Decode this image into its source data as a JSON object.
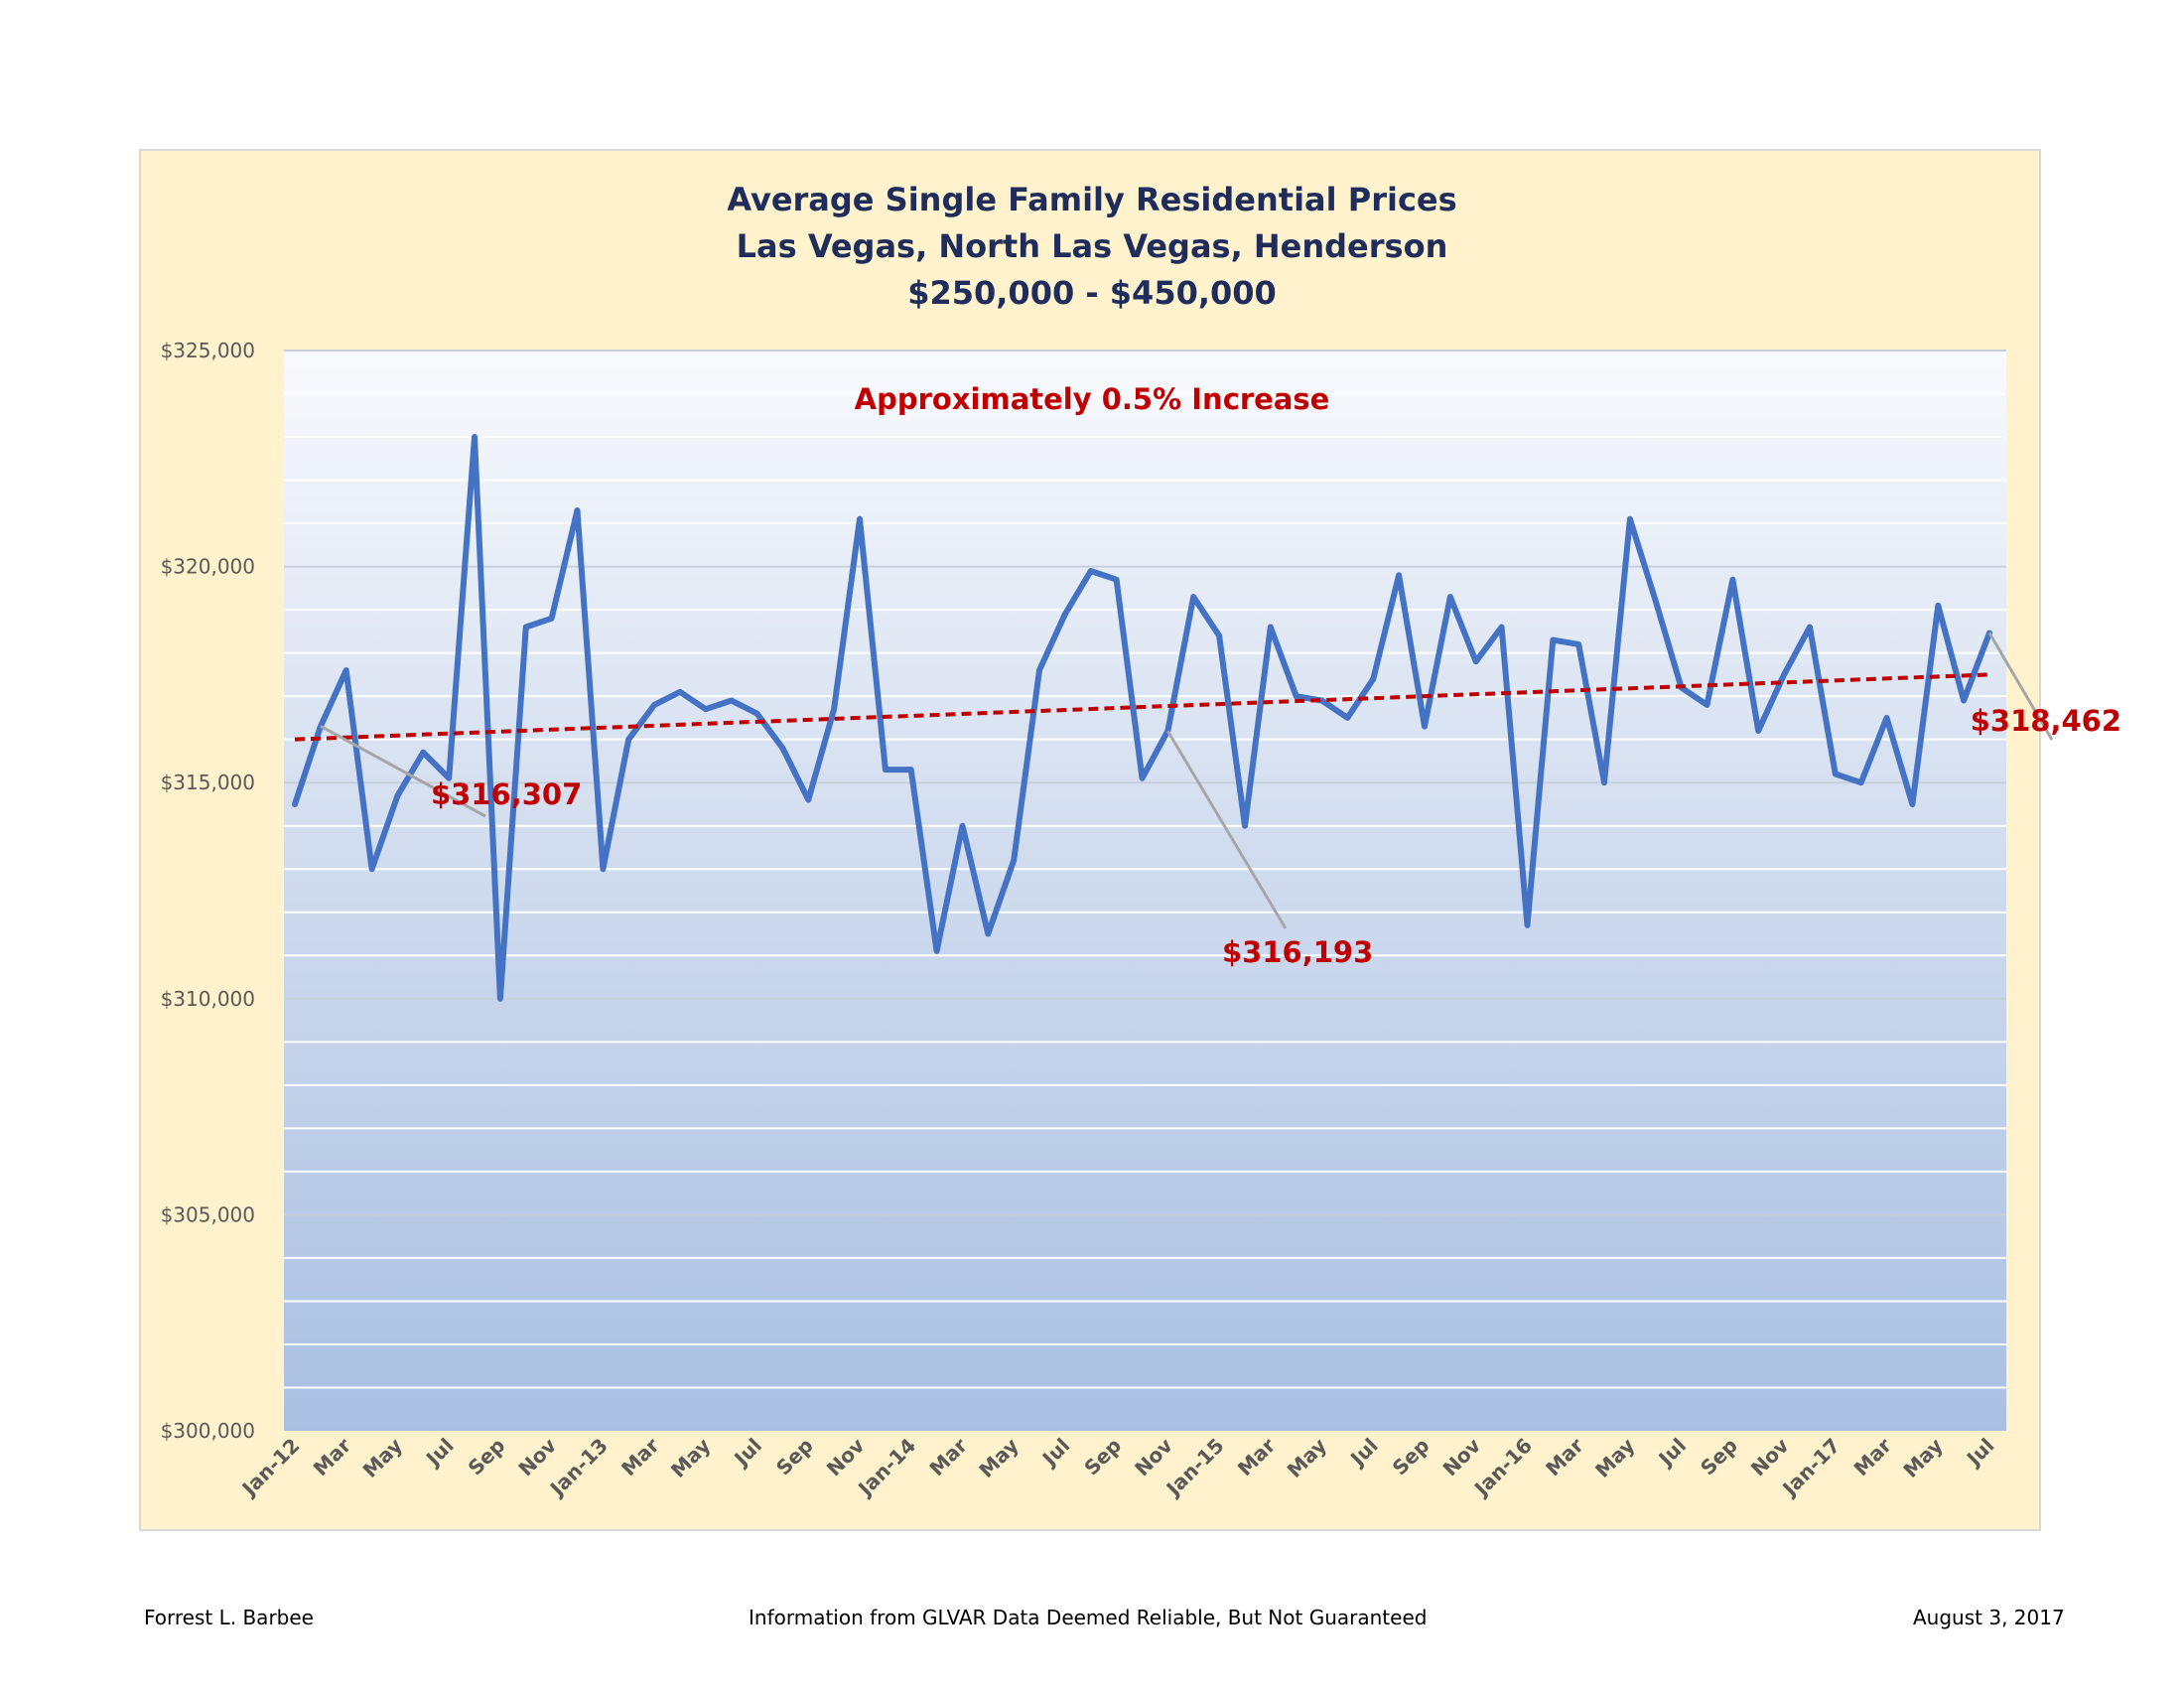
{
  "chart_data": {
    "type": "line",
    "title": [
      "Average Single Family Residential Prices",
      "Las Vegas, North Las Vegas, Henderson",
      "$250,000 - $450,000"
    ],
    "subtitle_annotation": "Approximately 0.5% Increase",
    "xlabel": "",
    "ylabel": "",
    "ylim": [
      300000,
      325000
    ],
    "y_ticks": [
      "$300,000",
      "$305,000",
      "$310,000",
      "$315,000",
      "$320,000",
      "$325,000"
    ],
    "y_tick_values": [
      300000,
      305000,
      310000,
      315000,
      320000,
      325000
    ],
    "x_tick_labels": [
      "Jan-12",
      "Mar",
      "May",
      "Jul",
      "Sep",
      "Nov",
      "Jan-13",
      "Mar",
      "May",
      "Jul",
      "Sep",
      "Nov",
      "Jan-14",
      "Mar",
      "May",
      "Jul",
      "Sep",
      "Nov",
      "Jan-15",
      "Mar",
      "May",
      "Jul",
      "Sep",
      "Nov",
      "Jan-16",
      "Mar",
      "May",
      "Jul",
      "Sep",
      "Nov",
      "Jan-17",
      "Mar",
      "May",
      "Jul"
    ],
    "grid": true,
    "legend": "none",
    "series": [
      {
        "name": "Average Price",
        "color": "#4472c4",
        "values": [
          314500,
          316300,
          317600,
          313000,
          314700,
          315700,
          315100,
          323000,
          310000,
          318600,
          318800,
          321300,
          313000,
          316000,
          316800,
          317100,
          316700,
          316900,
          316600,
          315800,
          314600,
          316700,
          321100,
          315300,
          315300,
          311100,
          314000,
          311500,
          313200,
          317600,
          318900,
          319900,
          319700,
          315100,
          316200,
          319300,
          318400,
          314000,
          318600,
          317000,
          316900,
          316500,
          317400,
          319800,
          316300,
          319300,
          317800,
          318600,
          311700,
          318300,
          318200,
          315000,
          321100,
          319200,
          317200,
          316800,
          319700,
          316200,
          317500,
          318600,
          315200,
          315000,
          316500,
          314500,
          319100,
          316900,
          318462
        ]
      },
      {
        "name": "Trend",
        "color": "#c00000",
        "style": "dashed",
        "values": [
          316000,
          317500
        ]
      }
    ],
    "annotations": [
      {
        "text": "$316,307",
        "index": 1,
        "value": 316307
      },
      {
        "text": "$316,193",
        "index": 34,
        "value": 316193
      },
      {
        "text": "$318,462",
        "index": 66,
        "value": 318462
      }
    ]
  },
  "footer": {
    "left": "Forrest L. Barbee",
    "center": "Information  from GLVAR Data Deemed Reliable, But Not Guaranteed",
    "right": "August 3, 2017"
  }
}
